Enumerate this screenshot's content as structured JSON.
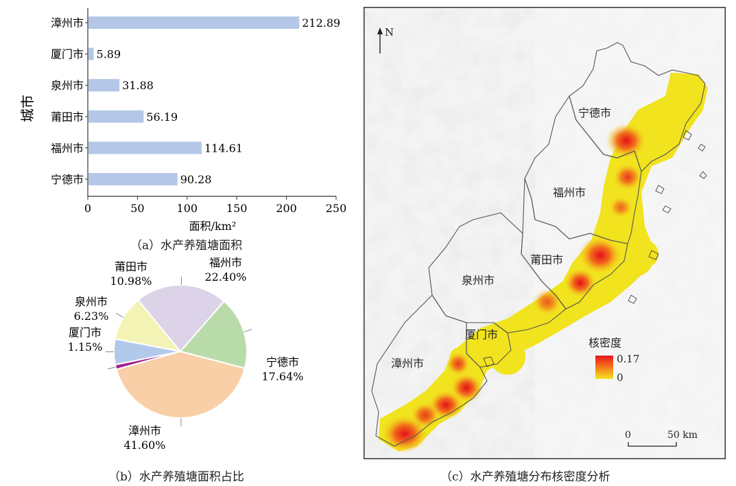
{
  "chart_data": [
    {
      "type": "bar",
      "orientation": "horizontal",
      "categories": [
        "宁德市",
        "福州市",
        "莆田市",
        "泉州市",
        "厦门市",
        "漳州市"
      ],
      "values": [
        90.28,
        114.61,
        56.19,
        31.88,
        5.89,
        212.89
      ],
      "value_labels": [
        "90.28",
        "114.61",
        "56.19",
        "31.88",
        "5.89",
        "212.89"
      ],
      "xlabel": "面积/km²",
      "ylabel": "城市",
      "xlim": [
        0,
        250
      ],
      "xticks": [
        0,
        50,
        100,
        150,
        200,
        250
      ],
      "bar_color": "#b4c7e7",
      "caption": "（a）水产养殖塘面积"
    },
    {
      "type": "pie",
      "slices": [
        {
          "label": "福州市",
          "percent_label": "22.40%",
          "value": 22.4,
          "color": "#dcd3e8"
        },
        {
          "label": "宁德市",
          "percent_label": "17.64%",
          "value": 17.64,
          "color": "#b9dba9"
        },
        {
          "label": "漳州市",
          "percent_label": "41.60%",
          "value": 41.6,
          "color": "#f8cfa7"
        },
        {
          "label": "厦门市",
          "percent_label": "1.15%",
          "value": 1.15,
          "color": "#a4208e"
        },
        {
          "label": "泉州市",
          "percent_label": "6.23%",
          "value": 6.23,
          "color": "#b3c9ec"
        },
        {
          "label": "莆田市",
          "percent_label": "10.98%",
          "value": 10.98,
          "color": "#f3f3b6"
        }
      ],
      "caption": "（b）水产养殖塘面积占比"
    },
    {
      "type": "heatmap",
      "map_labels": [
        "宁德市",
        "福州市",
        "莆田市",
        "泉州市",
        "厦门市",
        "漳州市"
      ],
      "north_label": "N",
      "legend_title": "核密度",
      "legend_max": "0.17",
      "legend_min": "0",
      "legend_colors": [
        "#e8141c",
        "#f5e51e"
      ],
      "scale_start": "0",
      "scale_end": "50 km",
      "caption": "（c）水产养殖塘分布核密度分析"
    }
  ]
}
